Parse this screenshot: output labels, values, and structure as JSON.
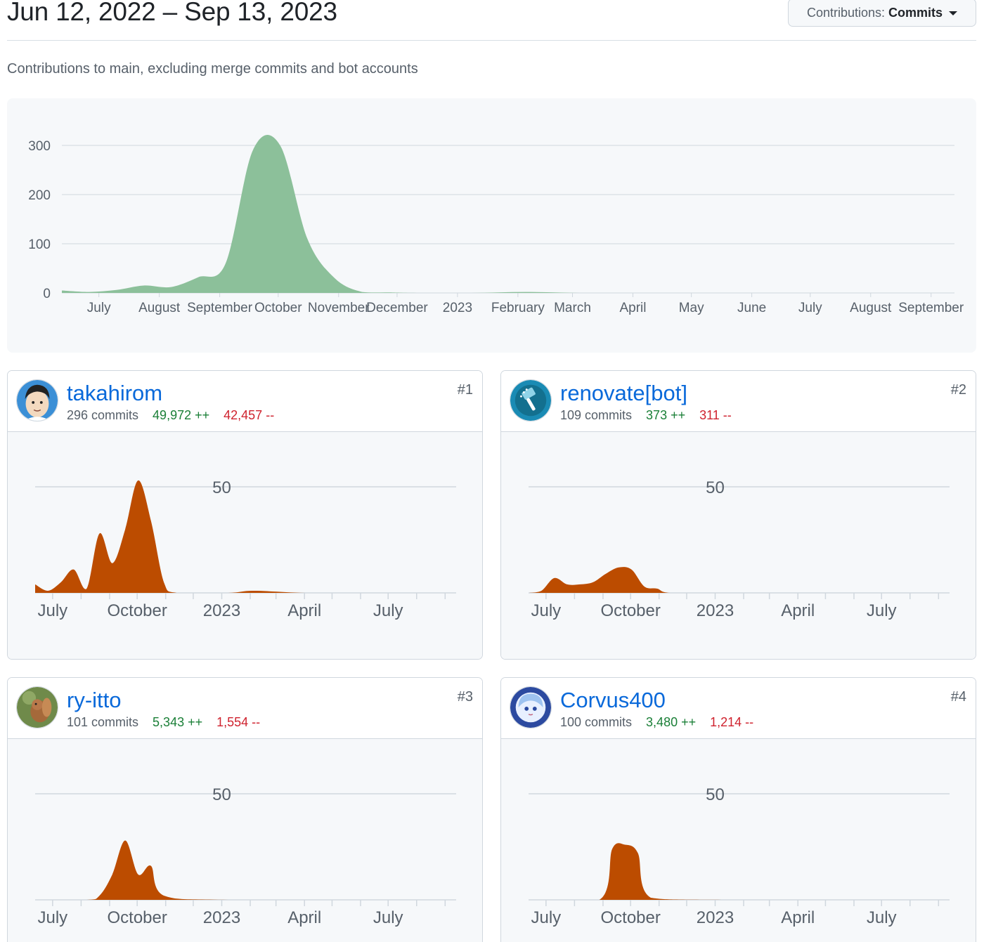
{
  "header": {
    "date_range": "Jun 12, 2022 – Sep 13, 2023",
    "dropdown_prefix": "Contributions:",
    "dropdown_value": "Commits",
    "subtitle": "Contributions to main, excluding merge commits and bot accounts"
  },
  "chart_data": [
    {
      "type": "area",
      "title": "",
      "y_ticks": [
        0,
        100,
        200,
        300
      ],
      "ylim": [
        0,
        300
      ],
      "x_labels": [
        "July",
        "August",
        "September",
        "October",
        "November",
        "December",
        "2023",
        "February",
        "March",
        "April",
        "May",
        "June",
        "July",
        "August",
        "September"
      ],
      "x": [
        "2022-06-12",
        "2022-06-26",
        "2022-07-10",
        "2022-07-24",
        "2022-08-07",
        "2022-08-21",
        "2022-09-04",
        "2022-09-18",
        "2022-10-02",
        "2022-10-16",
        "2022-10-30",
        "2022-11-13",
        "2022-11-27",
        "2022-12-11",
        "2023-01-08",
        "2023-02-05",
        "2023-03-05",
        "2023-04-02",
        "2023-04-30",
        "2023-05-28",
        "2023-06-25",
        "2023-07-23",
        "2023-08-20",
        "2023-09-13"
      ],
      "values": [
        5,
        2,
        6,
        15,
        12,
        32,
        60,
        290,
        300,
        110,
        30,
        2,
        1,
        0,
        0,
        2,
        0,
        0,
        0,
        0,
        0,
        0,
        0,
        0
      ],
      "color": "#8cc09a",
      "grid": true
    },
    {
      "type": "area",
      "contributor": "takahirom",
      "y_ticks": [
        50
      ],
      "ylim": [
        0,
        50
      ],
      "x_labels": [
        "July",
        "October",
        "2023",
        "April",
        "July"
      ],
      "x": [
        "2022-06-12",
        "2022-06-26",
        "2022-07-10",
        "2022-07-24",
        "2022-08-07",
        "2022-08-21",
        "2022-09-04",
        "2022-09-18",
        "2022-10-02",
        "2022-10-16",
        "2022-10-30",
        "2022-11-13",
        "2023-01-08",
        "2023-02-05",
        "2023-04-02",
        "2023-06-04",
        "2023-09-13"
      ],
      "values": [
        4,
        1,
        5,
        11,
        2,
        28,
        14,
        30,
        53,
        34,
        5,
        0,
        0,
        1,
        0,
        0,
        0
      ],
      "color": "#bc4c00"
    },
    {
      "type": "area",
      "contributor": "renovate[bot]",
      "y_ticks": [
        50
      ],
      "ylim": [
        0,
        50
      ],
      "x_labels": [
        "July",
        "October",
        "2023",
        "April",
        "July"
      ],
      "x": [
        "2022-06-12",
        "2022-06-26",
        "2022-07-10",
        "2022-07-24",
        "2022-08-07",
        "2022-08-21",
        "2022-09-04",
        "2022-09-18",
        "2022-10-02",
        "2022-10-16",
        "2022-10-30",
        "2022-11-13",
        "2023-01-08",
        "2023-04-02",
        "2023-09-13"
      ],
      "values": [
        0,
        1,
        7,
        4,
        4,
        5,
        9,
        12,
        11,
        3,
        2,
        0,
        0,
        0,
        0
      ],
      "color": "#bc4c00"
    },
    {
      "type": "area",
      "contributor": "ry-itto",
      "y_ticks": [
        50
      ],
      "ylim": [
        0,
        50
      ],
      "x_labels": [
        "July",
        "October",
        "2023",
        "April",
        "July"
      ],
      "x": [
        "2022-06-12",
        "2022-08-07",
        "2022-08-21",
        "2022-09-04",
        "2022-09-18",
        "2022-10-02",
        "2022-10-16",
        "2022-10-30",
        "2023-01-08",
        "2023-09-13"
      ],
      "values": [
        0,
        0,
        2,
        12,
        28,
        12,
        16,
        2,
        0,
        0
      ],
      "color": "#bc4c00"
    },
    {
      "type": "area",
      "contributor": "Corvus400",
      "y_ticks": [
        50
      ],
      "ylim": [
        0,
        50
      ],
      "x_labels": [
        "July",
        "October",
        "2023",
        "April",
        "July"
      ],
      "x": [
        "2022-06-12",
        "2022-08-28",
        "2022-09-11",
        "2022-09-25",
        "2022-10-09",
        "2022-10-23",
        "2023-01-08",
        "2023-09-13"
      ],
      "values": [
        0,
        0,
        24,
        26,
        22,
        1,
        0,
        0
      ],
      "color": "#bc4c00"
    }
  ],
  "contributors": [
    {
      "name": "takahirom",
      "commits": "296 commits",
      "additions": "49,972 ++",
      "deletions": "42,457 --",
      "rank": "#1",
      "avatar_icon": "person-avatar"
    },
    {
      "name": "renovate[bot]",
      "commits": "109 commits",
      "additions": "373 ++",
      "deletions": "311 --",
      "rank": "#2",
      "avatar_icon": "renovate-bot-avatar"
    },
    {
      "name": "ry-itto",
      "commits": "101 commits",
      "additions": "5,343 ++",
      "deletions": "1,554 --",
      "rank": "#3",
      "avatar_icon": "squirrel-avatar"
    },
    {
      "name": "Corvus400",
      "commits": "100 commits",
      "additions": "3,480 ++",
      "deletions": "1,214 --",
      "rank": "#4",
      "avatar_icon": "anime-avatar"
    }
  ]
}
